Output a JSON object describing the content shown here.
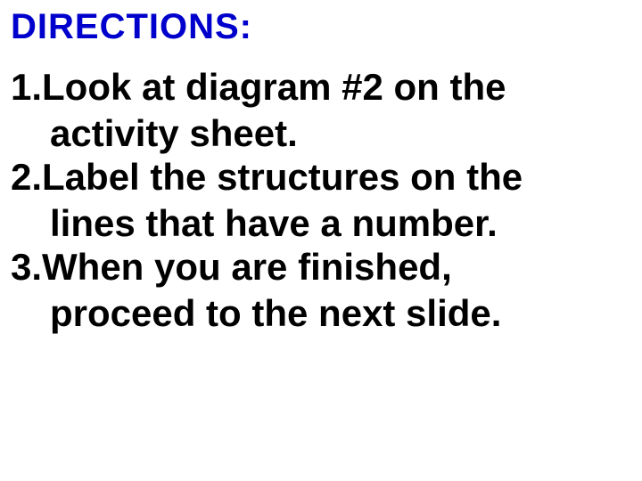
{
  "title": {
    "text": "DIRECTIONS:",
    "color": "#0000cc",
    "fontsize": 40,
    "fontweight": 900
  },
  "list": {
    "items": [
      {
        "number": "1.",
        "line1": "Look at diagram #2 on the",
        "line2": "activity sheet."
      },
      {
        "number": "2.",
        "line1": "Label the structures on the",
        "line2": "lines that have a number."
      },
      {
        "number": "3.",
        "line1": "When you are finished,",
        "line2": "proceed to the next slide."
      }
    ],
    "text_color": "#000000",
    "fontsize": 42,
    "fontweight": 700
  },
  "background_color": "#ffffff"
}
